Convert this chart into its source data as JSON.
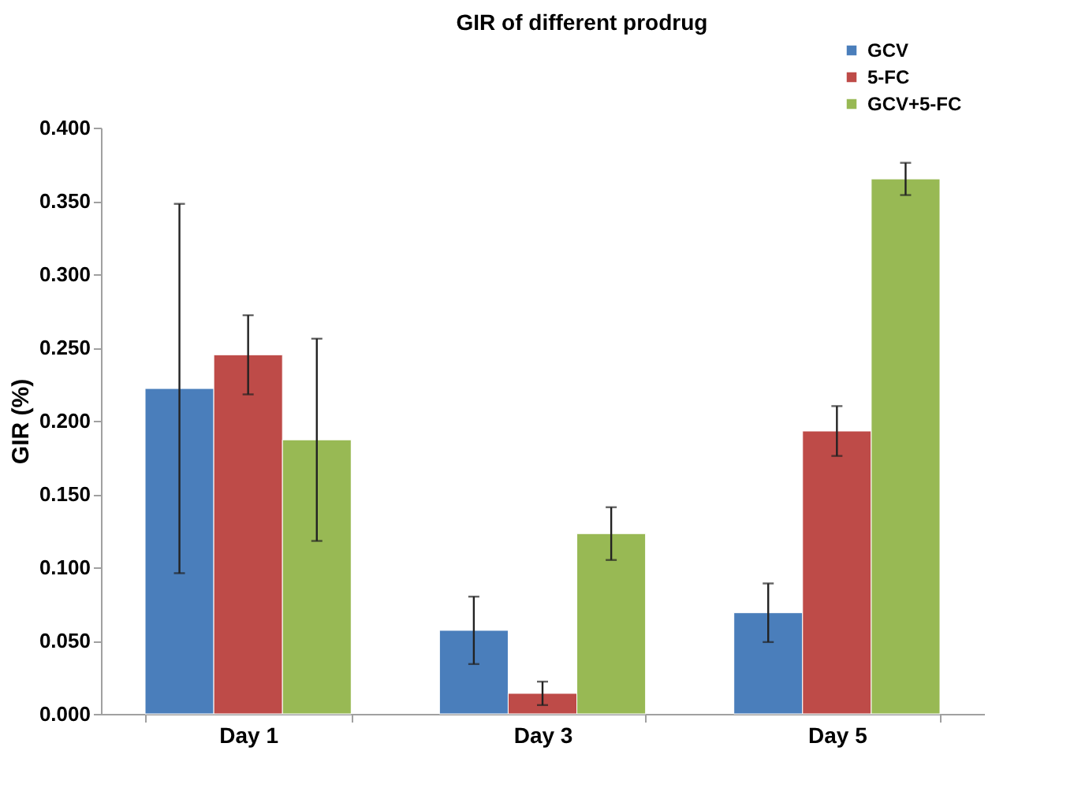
{
  "chart_data": {
    "type": "bar",
    "title": "GIR of different prodrug",
    "ylabel": "GIR (%)",
    "categories": [
      "Day 1",
      "Day 3",
      "Day 5"
    ],
    "series": [
      {
        "name": "GCV",
        "color": "#4a7ebb",
        "values": [
          0.222,
          0.057,
          0.069
        ],
        "errors": [
          0.126,
          0.023,
          0.02
        ]
      },
      {
        "name": "5-FC",
        "color": "#be4b48",
        "values": [
          0.245,
          0.014,
          0.193
        ],
        "errors": [
          0.027,
          0.008,
          0.017
        ]
      },
      {
        "name": "GCV+5-FC",
        "color": "#98b954",
        "values": [
          0.187,
          0.123,
          0.365
        ],
        "errors": [
          0.069,
          0.018,
          0.011
        ]
      }
    ],
    "ylim": [
      0,
      0.4
    ],
    "yticks": [
      {
        "value": 0,
        "label": "0.000"
      },
      {
        "value": 0.05,
        "label": "0.050"
      },
      {
        "value": 0.1,
        "label": "0.100"
      },
      {
        "value": 0.15,
        "label": "0.150"
      },
      {
        "value": 0.2,
        "label": "0.200"
      },
      {
        "value": 0.25,
        "label": "0.250"
      },
      {
        "value": 0.3,
        "label": "0.300"
      },
      {
        "value": 0.35,
        "label": "0.350"
      },
      {
        "value": 0.4,
        "label": "0.400"
      }
    ],
    "grid": false,
    "legend": "top right"
  }
}
